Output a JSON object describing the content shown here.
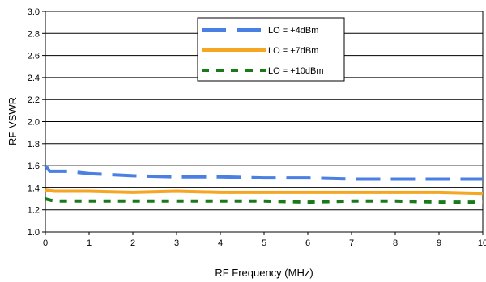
{
  "chart_data": {
    "type": "line",
    "title": "",
    "xlabel": "RF Frequency (MHz)",
    "ylabel": "RF VSWR",
    "xlim": [
      0,
      10
    ],
    "ylim": [
      1.0,
      3.0
    ],
    "x_ticks": [
      0,
      1,
      2,
      3,
      4,
      5,
      6,
      7,
      8,
      9,
      10
    ],
    "x_tick_labels": [
      "0",
      "1",
      "2",
      "3",
      "4",
      "5",
      "6",
      "7",
      "8",
      "9",
      "10"
    ],
    "y_ticks": [
      1.0,
      1.2,
      1.4,
      1.6,
      1.8,
      2.0,
      2.2,
      2.4,
      2.6,
      2.8,
      3.0
    ],
    "y_tick_labels": [
      "1.0",
      "1.2",
      "1.4",
      "1.6",
      "1.8",
      "2.0",
      "2.2",
      "2.4",
      "2.6",
      "2.8",
      "3.0"
    ],
    "grid": "horizontal",
    "legend_position": "top-center",
    "series": [
      {
        "name": "LO = +4dBm",
        "color": "#4a7fe3",
        "style": "long-dash",
        "x": [
          0,
          0.1,
          0.5,
          1,
          2,
          3,
          4,
          5,
          6,
          7,
          8,
          9,
          10
        ],
        "y": [
          1.6,
          1.55,
          1.55,
          1.53,
          1.51,
          1.5,
          1.5,
          1.49,
          1.49,
          1.48,
          1.48,
          1.48,
          1.48
        ]
      },
      {
        "name": "LO = +7dBm",
        "color": "#f5a623",
        "style": "solid",
        "x": [
          0,
          0.2,
          0.5,
          1,
          2,
          3,
          4,
          5,
          6,
          7,
          8,
          9,
          10
        ],
        "y": [
          1.38,
          1.37,
          1.37,
          1.37,
          1.36,
          1.37,
          1.36,
          1.36,
          1.36,
          1.36,
          1.36,
          1.36,
          1.35
        ]
      },
      {
        "name": "LO = +10dBm",
        "color": "#1a7a1a",
        "style": "short-dash",
        "x": [
          0,
          0.2,
          0.5,
          1,
          2,
          3,
          4,
          5,
          6,
          7,
          8,
          9,
          10
        ],
        "y": [
          1.3,
          1.28,
          1.28,
          1.28,
          1.28,
          1.28,
          1.28,
          1.28,
          1.27,
          1.28,
          1.28,
          1.27,
          1.27
        ]
      }
    ]
  }
}
